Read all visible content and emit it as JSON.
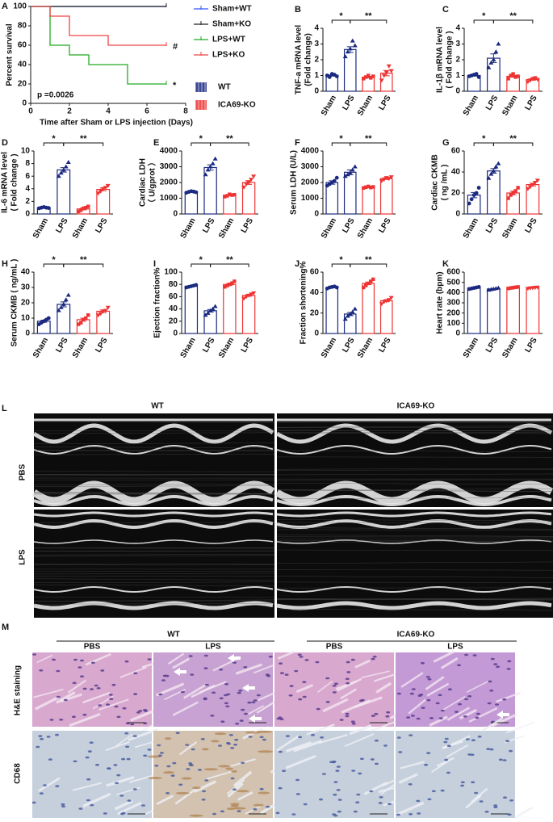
{
  "chart_data": [
    {
      "type": "line",
      "label": "A",
      "ylabel": "Percent survival",
      "xlabel": "Time after Sham or LPS injection (Days)",
      "xlim": [
        0,
        8
      ],
      "xticks": [
        0,
        2,
        4,
        6,
        8
      ],
      "ylim": [
        0,
        100
      ],
      "yticks": [
        0,
        20,
        40,
        60,
        80,
        100
      ],
      "p_value": "p =0.0026",
      "series": [
        {
          "name": "Sham+WT",
          "color": "#3355ff",
          "x": [
            0,
            7
          ],
          "values": [
            100,
            100
          ]
        },
        {
          "name": "Sham+KO",
          "color": "#222222",
          "x": [
            0,
            7
          ],
          "values": [
            100,
            100
          ]
        },
        {
          "name": "LPS+WT",
          "color": "#22aa22",
          "x": [
            0,
            1,
            1,
            2,
            2,
            3,
            3,
            5,
            5,
            7
          ],
          "values": [
            100,
            100,
            60,
            60,
            50,
            50,
            40,
            40,
            20,
            20
          ],
          "note": "*"
        },
        {
          "name": "LPS+KO",
          "color": "#ee4444",
          "x": [
            0,
            1,
            1,
            2,
            2,
            4,
            4,
            7
          ],
          "values": [
            100,
            100,
            90,
            90,
            70,
            70,
            60,
            60
          ],
          "note": "#"
        }
      ],
      "group_legend": [
        {
          "name": "WT",
          "color": "#1b2a80"
        },
        {
          "name": "ICA69-KO",
          "color": "#ee3333"
        }
      ]
    },
    {
      "type": "bar",
      "label": "B",
      "ylabel": [
        "TNF-a mRNA level",
        "(Fold change)"
      ],
      "categories": [
        "Sham",
        "LPS",
        "Sham",
        "LPS"
      ],
      "colors": [
        "#1b2a80",
        "#1b2a80",
        "#ee3333",
        "#ee3333"
      ],
      "values": [
        1.0,
        2.65,
        0.9,
        1.15
      ],
      "errors": [
        0.04,
        0.18,
        0.05,
        0.17
      ],
      "points": [
        [
          1.0,
          0.9,
          1.1,
          1.05,
          0.95
        ],
        [
          2.2,
          2.5,
          2.7,
          3.2,
          2.9
        ],
        [
          0.8,
          0.9,
          1.0,
          0.85,
          0.95
        ],
        [
          0.7,
          1.0,
          1.2,
          1.6,
          1.3
        ]
      ],
      "ylim": [
        0,
        4
      ],
      "yticks": [
        0,
        1,
        2,
        3,
        4
      ],
      "sig": [
        "*",
        "**"
      ]
    },
    {
      "type": "bar",
      "label": "C",
      "ylabel": [
        "IL-1β mRNA level",
        "( Fold change )"
      ],
      "categories": [
        "Sham",
        "LPS",
        "Sham",
        "LPS"
      ],
      "colors": [
        "#1b2a80",
        "#1b2a80",
        "#ee3333",
        "#ee3333"
      ],
      "values": [
        1.0,
        2.1,
        0.95,
        0.75
      ],
      "errors": [
        0.04,
        0.27,
        0.06,
        0.05
      ],
      "points": [
        [
          0.95,
          1.0,
          1.05,
          1.1,
          0.9
        ],
        [
          1.5,
          1.8,
          2.0,
          2.5,
          3.0
        ],
        [
          0.8,
          1.0,
          1.1,
          0.9,
          0.95
        ],
        [
          0.6,
          0.7,
          0.8,
          0.85,
          0.75
        ]
      ],
      "ylim": [
        0,
        4
      ],
      "yticks": [
        0,
        1,
        2,
        3,
        4
      ],
      "sig": [
        "*",
        "**"
      ]
    },
    {
      "type": "bar",
      "label": "D",
      "ylabel": [
        "IL-6 mRNA level",
        "( Fold change )"
      ],
      "categories": [
        "Sham",
        "LPS",
        "Sham",
        "LPS"
      ],
      "colors": [
        "#1b2a80",
        "#1b2a80",
        "#ee3333",
        "#ee3333"
      ],
      "values": [
        1.0,
        7.0,
        0.8,
        3.9
      ],
      "errors": [
        0.05,
        0.35,
        0.15,
        0.22
      ],
      "points": [
        [
          0.9,
          1.0,
          1.1,
          1.0,
          0.95
        ],
        [
          6.0,
          6.5,
          7.0,
          7.5,
          8.2
        ],
        [
          0.4,
          0.6,
          0.9,
          1.0,
          1.2
        ],
        [
          3.3,
          3.6,
          4.0,
          4.2,
          4.5
        ]
      ],
      "ylim": [
        0,
        10
      ],
      "yticks": [
        0,
        2,
        4,
        6,
        8,
        10
      ],
      "sig": [
        "*",
        "**"
      ]
    },
    {
      "type": "bar",
      "label": "E",
      "ylabel": [
        "Cardiac LDH",
        "（ U/gprot ）"
      ],
      "categories": [
        "Sham",
        "LPS",
        "Sham",
        "LPS"
      ],
      "colors": [
        "#1b2a80",
        "#1b2a80",
        "#ee3333",
        "#ee3333"
      ],
      "values": [
        1400,
        2950,
        1200,
        2000
      ],
      "errors": [
        30,
        170,
        40,
        120
      ],
      "points": [
        [
          1350,
          1400,
          1450,
          1420,
          1380
        ],
        [
          2500,
          2800,
          3000,
          3200,
          3500
        ],
        [
          1100,
          1150,
          1250,
          1200,
          1220
        ],
        [
          1700,
          1900,
          2000,
          2200,
          2400
        ]
      ],
      "ylim": [
        0,
        4000
      ],
      "yticks": [
        0,
        1000,
        2000,
        3000,
        4000
      ],
      "sig": [
        "*",
        "**"
      ]
    },
    {
      "type": "bar",
      "label": "F",
      "ylabel": [
        "Serum LDH (U/L)"
      ],
      "categories": [
        "Sham",
        "LPS",
        "Sham",
        "LPS"
      ],
      "colors": [
        "#1b2a80",
        "#1b2a80",
        "#ee3333",
        "#ee3333"
      ],
      "values": [
        2000,
        2650,
        1700,
        2250
      ],
      "errors": [
        110,
        150,
        30,
        60
      ],
      "points": [
        [
          1800,
          1900,
          2000,
          2100,
          2300
        ],
        [
          2400,
          2500,
          2600,
          2800,
          3000
        ],
        [
          1650,
          1700,
          1750,
          1680,
          1720
        ],
        [
          2100,
          2200,
          2300,
          2250,
          2350
        ]
      ],
      "ylim": [
        0,
        4000
      ],
      "yticks": [
        0,
        1000,
        2000,
        3000,
        4000
      ],
      "sig": [
        "*",
        "**"
      ]
    },
    {
      "type": "bar",
      "label": "G",
      "ylabel": [
        "Cardiac CKMB",
        "( ng /mL )"
      ],
      "categories": [
        "Sham",
        "LPS",
        "Sham",
        "LPS"
      ],
      "colors": [
        "#1b2a80",
        "#1b2a80",
        "#ee3333",
        "#ee3333"
      ],
      "values": [
        18,
        41,
        20,
        28
      ],
      "errors": [
        2.5,
        2.2,
        1.7,
        1.3
      ],
      "points": [
        [
          10,
          14,
          18,
          20,
          25
        ],
        [
          34,
          38,
          41,
          45,
          48
        ],
        [
          15,
          18,
          20,
          22,
          25
        ],
        [
          24,
          26,
          28,
          30,
          32
        ]
      ],
      "ylim": [
        0,
        60
      ],
      "yticks": [
        0,
        20,
        40,
        60
      ],
      "sig": [
        "*",
        "**"
      ]
    },
    {
      "type": "bar",
      "label": "H",
      "ylabel": [
        "Serum CKMB ( ng/mL )"
      ],
      "categories": [
        "Sham",
        "LPS",
        "Sham",
        "LPS"
      ],
      "colors": [
        "#1b2a80",
        "#1b2a80",
        "#ee3333",
        "#ee3333"
      ],
      "values": [
        8,
        19,
        9,
        14.5
      ],
      "errors": [
        0.7,
        1.6,
        1.0,
        0.9
      ],
      "points": [
        [
          6,
          7,
          8,
          9,
          10
        ],
        [
          15,
          17,
          19,
          22,
          25
        ],
        [
          6,
          7,
          9,
          10,
          12
        ],
        [
          12,
          13,
          14.5,
          15,
          17
        ]
      ],
      "ylim": [
        0,
        40
      ],
      "yticks": [
        0,
        10,
        20,
        30,
        40
      ],
      "sig": [
        "*",
        "**"
      ]
    },
    {
      "type": "bar",
      "label": "I",
      "ylabel": [
        "Ejection fraction%"
      ],
      "categories": [
        "Sham",
        "LPS",
        "Sham",
        "LPS"
      ],
      "colors": [
        "#1b2a80",
        "#1b2a80",
        "#ee3333",
        "#ee3333"
      ],
      "values": [
        77,
        37,
        80,
        62
      ],
      "errors": [
        0.7,
        2.1,
        1.4,
        1.3
      ],
      "points": [
        [
          75,
          76,
          77,
          78,
          79
        ],
        [
          30,
          33,
          37,
          40,
          44
        ],
        [
          76,
          78,
          80,
          82,
          85
        ],
        [
          57,
          60,
          62,
          64,
          66
        ]
      ],
      "ylim": [
        0,
        100
      ],
      "yticks": [
        0,
        20,
        40,
        60,
        80,
        100
      ],
      "sig": [
        "*",
        "**"
      ]
    },
    {
      "type": "bar",
      "label": "J",
      "ylabel": [
        "Fraction shortening%"
      ],
      "categories": [
        "Sham",
        "LPS",
        "Sham",
        "LPS"
      ],
      "colors": [
        "#1b2a80",
        "#1b2a80",
        "#ee3333",
        "#ee3333"
      ],
      "values": [
        45,
        19,
        49,
        32
      ],
      "errors": [
        0.4,
        1.5,
        1.2,
        0.9
      ],
      "points": [
        [
          44,
          45,
          45.5,
          46,
          45
        ],
        [
          14,
          17,
          19,
          21,
          24
        ],
        [
          45,
          47,
          49,
          51,
          53
        ],
        [
          29,
          31,
          32,
          33,
          35
        ]
      ],
      "ylim": [
        0,
        60
      ],
      "yticks": [
        0,
        20,
        40,
        60
      ],
      "sig": [
        "*",
        "**"
      ]
    },
    {
      "type": "bar",
      "label": "K",
      "ylabel": [
        "Heart rate (bpm)"
      ],
      "categories": [
        "Sham",
        "LPS",
        "Sham",
        "LPS"
      ],
      "colors": [
        "#1b2a80",
        "#1b2a80",
        "#ee3333",
        "#ee3333"
      ],
      "values": [
        445,
        435,
        448,
        447
      ],
      "errors": [
        6,
        5,
        5,
        4
      ],
      "points": [
        [
          435,
          440,
          445,
          450,
          455
        ],
        [
          425,
          430,
          435,
          440,
          445
        ],
        [
          440,
          445,
          448,
          452,
          455
        ],
        [
          440,
          444,
          447,
          450,
          452
        ]
      ],
      "ylim": [
        0,
        600
      ],
      "yticks": [
        0,
        100,
        200,
        300,
        400,
        500,
        600
      ]
    }
  ],
  "echo": {
    "label": "L",
    "columns": [
      "WT",
      "ICA69-KO"
    ],
    "rows": [
      "PBS",
      "LPS"
    ]
  },
  "histology": {
    "label": "M",
    "groups": [
      "WT",
      "ICA69-KO"
    ],
    "columns": [
      "PBS",
      "LPS",
      "PBS",
      "LPS"
    ],
    "rows": [
      "H&E staining",
      "CD68"
    ]
  }
}
